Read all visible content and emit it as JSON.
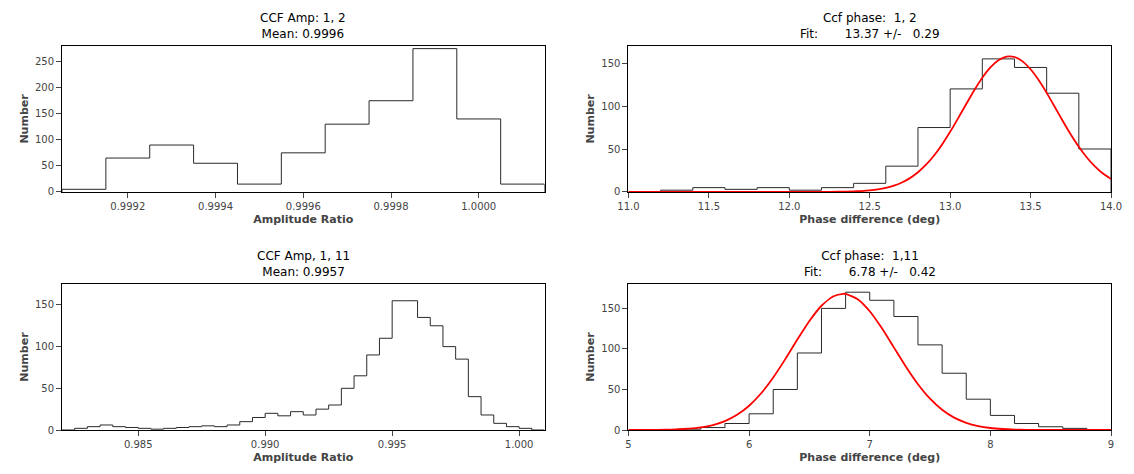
{
  "chart_data": [
    {
      "type": "histogram",
      "title": "CCF Amp: 1, 2",
      "subtitle": "Mean: 0.9996",
      "x_label": "Amplitude Ratio",
      "y_label": "Number",
      "xlim": [
        0.99905,
        1.00015
      ],
      "ylim": [
        0,
        280
      ],
      "xticks": [
        0.9992,
        0.9994,
        0.9996,
        0.9998,
        {
          "value": 1.0,
          "label": "1.0000"
        }
      ],
      "yticks": [
        0,
        50,
        100,
        150,
        200,
        250
      ],
      "grid": false,
      "series": [
        {
          "type": "histogram",
          "color": "#2a2a2a",
          "bins": [
            0.99905,
            0.99915,
            0.99925,
            0.99935,
            0.99945,
            0.99955,
            0.99965,
            0.99975,
            0.99985,
            0.99995,
            1.00005,
            1.00015
          ],
          "values": [
            5,
            65,
            90,
            55,
            15,
            75,
            130,
            175,
            275,
            140,
            15
          ]
        }
      ]
    },
    {
      "type": "histogram",
      "title": "Ccf phase:  1, 2",
      "subtitle": "Fit:       13.37 +/-   0.29",
      "x_label": "Phase difference (deg)",
      "y_label": "Number",
      "xlim": [
        11.0,
        14.0
      ],
      "ylim": [
        0,
        170
      ],
      "xticks": [
        {
          "value": 11.0,
          "label": "11.0"
        },
        11.5,
        {
          "value": 12.0,
          "label": "12.0"
        },
        12.5,
        {
          "value": 13.0,
          "label": "13.0"
        },
        13.5,
        {
          "value": 14.0,
          "label": "14.0"
        }
      ],
      "yticks": [
        0,
        50,
        100,
        150
      ],
      "grid": false,
      "series": [
        {
          "type": "histogram",
          "color": "#2a2a2a",
          "bins": [
            11.0,
            11.2,
            11.4,
            11.6,
            11.8,
            12.0,
            12.2,
            12.4,
            12.6,
            12.8,
            13.0,
            13.2,
            13.4,
            13.6,
            13.8,
            14.0
          ],
          "values": [
            0,
            2,
            5,
            3,
            5,
            2,
            5,
            10,
            30,
            75,
            120,
            155,
            145,
            115,
            50
          ]
        },
        {
          "type": "line",
          "color": "#ff0000",
          "x": [
            11.0,
            11.2,
            11.4,
            11.6,
            11.8,
            12.0,
            12.1,
            12.2,
            12.3,
            12.4,
            12.45,
            12.5,
            12.55,
            12.6,
            12.65,
            12.7,
            12.75,
            12.8,
            12.85,
            12.9,
            12.95,
            13.0,
            13.05,
            13.1,
            13.15,
            13.2,
            13.25,
            13.3,
            13.35,
            13.37,
            13.4,
            13.45,
            13.5,
            13.55,
            13.6,
            13.65,
            13.7,
            13.75,
            13.8,
            13.85,
            13.9,
            13.95,
            14.0
          ],
          "values": [
            0,
            0,
            0,
            0,
            0.0001,
            0.0023,
            0.0108,
            0.0462,
            0.1748,
            0.5879,
            1.031,
            1.755,
            2.901,
            4.653,
            7.247,
            10.955,
            16.07,
            22.9,
            31.66,
            42.49,
            55.36,
            70.01,
            85.95,
            102.43,
            118.49,
            133.06,
            145.04,
            153.46,
            157.62,
            158,
            157.16,
            152.1,
            142.9,
            130.32,
            115.36,
            99.14,
            82.69,
            66.96,
            52.63,
            40.16,
            29.74,
            21.38,
            14.92
          ]
        }
      ]
    },
    {
      "type": "histogram",
      "title": "CCF Amp, 1, 11",
      "subtitle": "Mean: 0.9957",
      "x_label": "Amplitude Ratio",
      "y_label": "Number",
      "xlim": [
        0.982,
        1.001
      ],
      "ylim": [
        0,
        175
      ],
      "xticks": [
        0.985,
        {
          "value": 0.99,
          "label": "0.990"
        },
        0.995,
        {
          "value": 1.0,
          "label": "1.000"
        }
      ],
      "yticks": [
        0,
        50,
        100,
        150
      ],
      "grid": false,
      "series": [
        {
          "type": "histogram",
          "color": "#2a2a2a",
          "bins": [
            0.982,
            0.9825,
            0.983,
            0.9835,
            0.984,
            0.9845,
            0.985,
            0.9855,
            0.986,
            0.9865,
            0.987,
            0.9875,
            0.988,
            0.9885,
            0.989,
            0.9895,
            0.99,
            0.9905,
            0.991,
            0.9915,
            0.992,
            0.9925,
            0.993,
            0.9935,
            0.994,
            0.9945,
            0.995,
            0.9955,
            0.996,
            0.9965,
            0.997,
            0.9975,
            0.998,
            0.9985,
            0.999,
            0.9995,
            1.0,
            1.0005,
            1.001
          ],
          "values": [
            0,
            2,
            4,
            6,
            4,
            3,
            2,
            1,
            2,
            3,
            4,
            5,
            4,
            6,
            10,
            15,
            20,
            17,
            22,
            18,
            25,
            30,
            50,
            65,
            90,
            110,
            155,
            155,
            135,
            125,
            100,
            85,
            40,
            18,
            8,
            4,
            2,
            0
          ]
        }
      ]
    },
    {
      "type": "histogram",
      "title": "Ccf phase:  1,11",
      "subtitle": "Fit:       6.78 +/-   0.42",
      "x_label": "Phase difference (deg)",
      "y_label": "Number",
      "xlim": [
        5.0,
        9.0
      ],
      "ylim": [
        0,
        180
      ],
      "xticks": [
        5,
        6,
        7,
        8,
        9
      ],
      "yticks": [
        0,
        50,
        100,
        150
      ],
      "grid": false,
      "series": [
        {
          "type": "histogram",
          "color": "#2a2a2a",
          "bins": [
            5.0,
            5.2,
            5.4,
            5.6,
            5.8,
            6.0,
            6.2,
            6.4,
            6.6,
            6.8,
            7.0,
            7.2,
            7.4,
            7.6,
            7.8,
            8.0,
            8.2,
            8.4,
            8.6,
            8.8,
            9.0
          ],
          "values": [
            0,
            0,
            1,
            3,
            8,
            20,
            50,
            95,
            150,
            170,
            160,
            140,
            105,
            70,
            38,
            18,
            8,
            4,
            2,
            0
          ]
        },
        {
          "type": "line",
          "color": "#ff0000",
          "x": [
            5.0,
            5.1,
            5.2,
            5.3,
            5.4,
            5.5,
            5.6,
            5.7,
            5.8,
            5.9,
            6.0,
            6.1,
            6.2,
            6.3,
            6.4,
            6.5,
            6.6,
            6.7,
            6.78,
            6.8,
            6.9,
            7.0,
            7.1,
            7.2,
            7.3,
            7.4,
            7.5,
            7.6,
            7.7,
            7.8,
            7.9,
            8.0,
            8.1,
            8.2,
            8.3,
            8.4,
            8.5,
            8.6,
            8.7,
            8.8,
            8.9,
            9.0
          ],
          "values": [
            0.0211,
            0.0564,
            0.142,
            0.338,
            0.7603,
            1.616,
            3.245,
            6.159,
            11.04,
            18.71,
            29.95,
            45.3,
            64.75,
            87.44,
            111.57,
            134.52,
            153.26,
            164.98,
            168,
            167.81,
            161.28,
            146.46,
            125.68,
            101.9,
            78.06,
            56.51,
            38.65,
            24.98,
            15.25,
            8.802,
            4.799,
            2.472,
            1.203,
            0.5535,
            0.2406,
            0.0988,
            0.0383,
            0.0141,
            0.0049,
            0.0016,
            0.0005,
            0.0001
          ]
        }
      ]
    }
  ]
}
